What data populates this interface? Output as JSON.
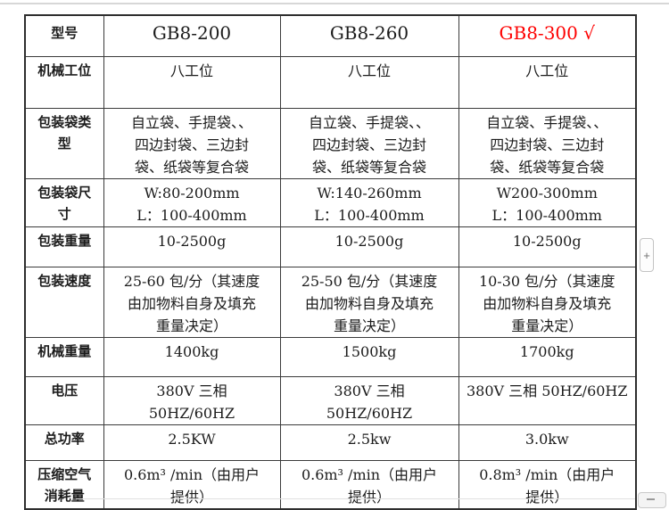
{
  "colors": {
    "highlight_red": "#fe0000",
    "table_border": "#3b3b3b",
    "top_divider": "#d7d7d7"
  },
  "controls": {
    "zoom_in_label": "+"
  },
  "table": {
    "header": {
      "label": "型号",
      "models": [
        {
          "name": "GB8-200",
          "highlighted": false
        },
        {
          "name": "GB8-260",
          "highlighted": false
        },
        {
          "name": "GB8-300 √",
          "highlighted": true
        }
      ]
    },
    "rows": [
      {
        "label": [
          "机械工位"
        ],
        "cells": [
          [
            "八工位"
          ],
          [
            "八工位"
          ],
          [
            "八工位"
          ]
        ]
      },
      {
        "label": [
          "包装袋类",
          "型"
        ],
        "cells": [
          [
            "自立袋、手提袋、、",
            "四边封袋、三边封",
            "袋、纸袋等复合袋"
          ],
          [
            "自立袋、手提袋、、",
            "四边封袋、三边封",
            "袋、纸袋等复合袋"
          ],
          [
            "自立袋、手提袋、、",
            "四边封袋、三边封",
            "袋、纸袋等复合袋"
          ]
        ]
      },
      {
        "label": [
          "包装袋尺",
          "寸"
        ],
        "cells": [
          [
            "W:80-200mm",
            "L：100-400mm"
          ],
          [
            "W:140-260mm",
            "L：100-400mm"
          ],
          [
            "W200-300mm",
            "L：100-400mm"
          ]
        ]
      },
      {
        "label": [
          "包装重量"
        ],
        "cells": [
          [
            "10-2500g"
          ],
          [
            "10-2500g"
          ],
          [
            "10-2500g"
          ]
        ]
      },
      {
        "label": [
          "包装速度"
        ],
        "cells": [
          [
            "25-60 包/分（其速度",
            "由加物料自身及填充",
            "重量决定）"
          ],
          [
            "25-50 包/分（其速度",
            "由加物料自身及填充",
            "重量决定）"
          ],
          [
            "10-30 包/分（其速度",
            "由加物料自身及填充",
            "重量决定）"
          ]
        ]
      },
      {
        "label": [
          "机械重量"
        ],
        "cells": [
          [
            "1400kg"
          ],
          [
            "1500kg"
          ],
          [
            "1700kg"
          ]
        ]
      },
      {
        "label": [
          "电压"
        ],
        "cells": [
          [
            "380V 三相",
            "50HZ/60HZ"
          ],
          [
            "380V 三相",
            "50HZ/60HZ"
          ],
          [
            "380V 三相 50HZ/60HZ"
          ]
        ]
      },
      {
        "label": [
          "总功率"
        ],
        "cells": [
          [
            "2.5KW"
          ],
          [
            "2.5kw"
          ],
          [
            "3.0kw"
          ]
        ]
      },
      {
        "label": [
          "压缩空气",
          "消耗量"
        ],
        "cells": [
          [
            "0.6m³ /min（由用户",
            "提供）"
          ],
          [
            "0.6m³ /min（由用户",
            "提供）"
          ],
          [
            "0.8m³ /min（由用户",
            "提供）"
          ]
        ]
      }
    ]
  }
}
